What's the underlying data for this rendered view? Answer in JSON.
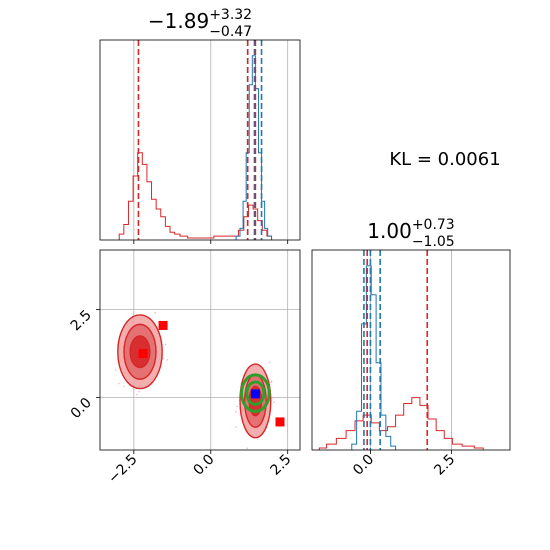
{
  "chart_data": {
    "type": "corner",
    "annotation": "KL = 0.0061",
    "titles": [
      {
        "value": "−1.89",
        "upper": "+3.32",
        "lower": "−0.47"
      },
      {
        "value": "1.00",
        "upper": "+0.73",
        "lower": "−1.05"
      }
    ],
    "axis_ranges": {
      "x0": [
        -3.6,
        2.9
      ],
      "x1": [
        -1.8,
        4.3
      ],
      "y1": [
        -1.5,
        4.2
      ]
    },
    "ticks": {
      "x0": [
        {
          "v": -2.5,
          "label": "−2.5"
        },
        {
          "v": 0.0,
          "label": "0.0"
        },
        {
          "v": 2.5,
          "label": "2.5"
        }
      ],
      "x1": [
        {
          "v": 0.0,
          "label": "0.0"
        },
        {
          "v": 2.5,
          "label": "2.5"
        }
      ],
      "y1": [
        {
          "v": 0.0,
          "label": "0.0"
        },
        {
          "v": 2.5,
          "label": "2.5"
        }
      ]
    },
    "colors": {
      "red": "#d62728",
      "blue": "#1f77b4",
      "green": "#2ca02c",
      "light_red": "#f2a0a0",
      "mid_red": "#e36b6b",
      "grid": "#b0b0b0",
      "pink": "#f7b6c8"
    },
    "grid": true,
    "hist_x0": {
      "red": {
        "bins": [
          {
            "x": -2.9,
            "y": 0.03
          },
          {
            "x": -2.75,
            "y": 0.08
          },
          {
            "x": -2.6,
            "y": 0.2
          },
          {
            "x": -2.45,
            "y": 0.33
          },
          {
            "x": -2.3,
            "y": 0.45
          },
          {
            "x": -2.15,
            "y": 0.39
          },
          {
            "x": -2.0,
            "y": 0.3
          },
          {
            "x": -1.85,
            "y": 0.21
          },
          {
            "x": -1.7,
            "y": 0.16
          },
          {
            "x": -1.55,
            "y": 0.12
          },
          {
            "x": -1.4,
            "y": 0.07
          },
          {
            "x": -1.25,
            "y": 0.04
          },
          {
            "x": -1.1,
            "y": 0.03
          },
          {
            "x": -0.9,
            "y": 0.02
          },
          {
            "x": -0.6,
            "y": 0.01
          },
          {
            "x": 0.8,
            "y": 0.02
          },
          {
            "x": 1.0,
            "y": 0.05
          },
          {
            "x": 1.15,
            "y": 0.12
          },
          {
            "x": 1.3,
            "y": 0.18
          },
          {
            "x": 1.45,
            "y": 0.16
          },
          {
            "x": 1.6,
            "y": 0.1
          },
          {
            "x": 1.75,
            "y": 0.05
          },
          {
            "x": 1.9,
            "y": 0.02
          }
        ],
        "vlines": [
          -2.35,
          1.2,
          1.45
        ]
      },
      "blue": {
        "bins": [
          {
            "x": 0.9,
            "y": 0.02
          },
          {
            "x": 1.0,
            "y": 0.06
          },
          {
            "x": 1.1,
            "y": 0.2
          },
          {
            "x": 1.2,
            "y": 0.45
          },
          {
            "x": 1.3,
            "y": 0.8
          },
          {
            "x": 1.4,
            "y": 0.95
          },
          {
            "x": 1.5,
            "y": 0.78
          },
          {
            "x": 1.6,
            "y": 0.45
          },
          {
            "x": 1.7,
            "y": 0.2
          },
          {
            "x": 1.8,
            "y": 0.06
          },
          {
            "x": 1.9,
            "y": 0.02
          }
        ],
        "vlines": [
          1.2,
          1.42,
          1.65
        ]
      }
    },
    "hist_x1": {
      "red": {
        "bins": [
          {
            "x": -1.5,
            "y": 0.01
          },
          {
            "x": -1.2,
            "y": 0.03
          },
          {
            "x": -0.9,
            "y": 0.06
          },
          {
            "x": -0.6,
            "y": 0.1
          },
          {
            "x": -0.35,
            "y": 0.15
          },
          {
            "x": -0.1,
            "y": 0.18
          },
          {
            "x": 0.15,
            "y": 0.14
          },
          {
            "x": 0.4,
            "y": 0.1
          },
          {
            "x": 0.65,
            "y": 0.12
          },
          {
            "x": 0.9,
            "y": 0.18
          },
          {
            "x": 1.15,
            "y": 0.24
          },
          {
            "x": 1.4,
            "y": 0.27
          },
          {
            "x": 1.65,
            "y": 0.23
          },
          {
            "x": 1.9,
            "y": 0.16
          },
          {
            "x": 2.15,
            "y": 0.1
          },
          {
            "x": 2.4,
            "y": 0.06
          },
          {
            "x": 2.65,
            "y": 0.03
          },
          {
            "x": 3.0,
            "y": 0.02
          },
          {
            "x": 3.4,
            "y": 0.01
          }
        ],
        "vlines": [
          -0.1,
          1.75
        ]
      },
      "blue": {
        "bins": [
          {
            "x": -0.5,
            "y": 0.03
          },
          {
            "x": -0.35,
            "y": 0.2
          },
          {
            "x": -0.2,
            "y": 0.65
          },
          {
            "x": -0.05,
            "y": 0.95
          },
          {
            "x": 0.1,
            "y": 0.8
          },
          {
            "x": 0.25,
            "y": 0.45
          },
          {
            "x": 0.4,
            "y": 0.18
          },
          {
            "x": 0.55,
            "y": 0.07
          },
          {
            "x": 0.7,
            "y": 0.02
          }
        ],
        "vlines": [
          -0.2,
          0.0,
          0.3
        ]
      }
    },
    "scatter": {
      "clusters": [
        {
          "cx": -2.3,
          "cy": 1.3,
          "rx": [
            0.72,
            0.52,
            0.32
          ],
          "ry": [
            1.05,
            0.78,
            0.45
          ]
        },
        {
          "cx": 1.45,
          "cy": -0.1,
          "rx": [
            0.5,
            0.35,
            0.2
          ],
          "ry": [
            1.05,
            0.75,
            0.42
          ]
        }
      ],
      "green_contours": {
        "cx": 1.45,
        "cy": 0.12,
        "rx": [
          0.45,
          0.28
        ],
        "ry": [
          0.52,
          0.32
        ]
      },
      "red_markers": [
        {
          "x": -2.2,
          "y": 1.25
        },
        {
          "x": -1.55,
          "y": 2.05
        },
        {
          "x": 2.25,
          "y": -0.7
        }
      ],
      "blue_marker": {
        "x": 1.45,
        "y": 0.1
      },
      "crosshair": {
        "x": 0.0,
        "y": 0.0
      }
    }
  }
}
